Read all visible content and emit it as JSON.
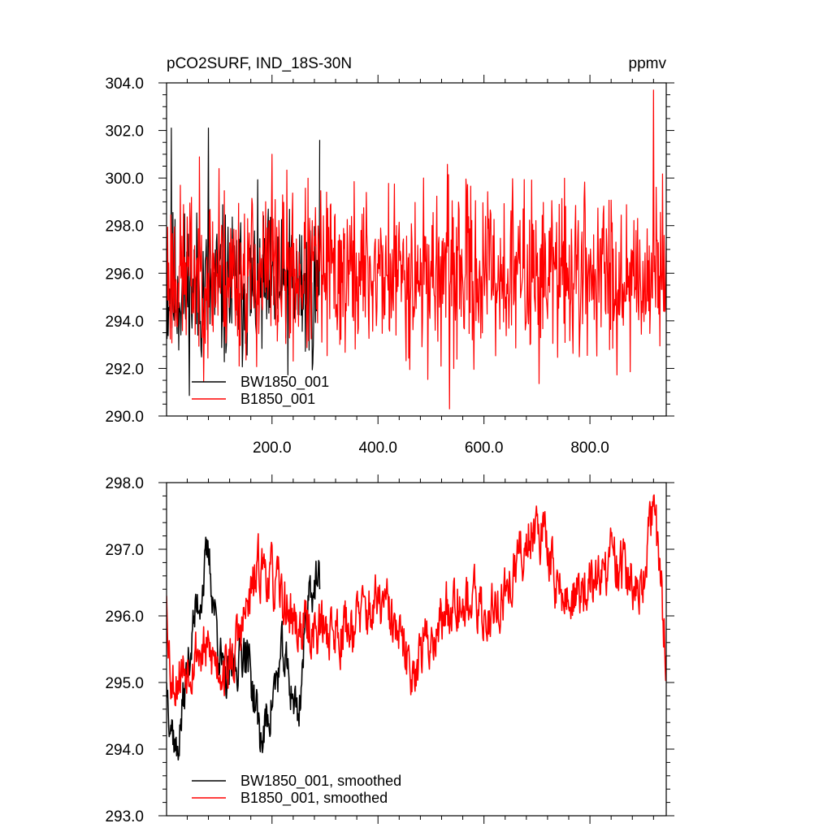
{
  "chart_data": [
    {
      "type": "line",
      "title": "pCO2SURF, IND_18S-30N",
      "units_label": "ppmv",
      "xlabel": "",
      "ylabel": "",
      "xlim": [
        1,
        944
      ],
      "ylim": [
        290.0,
        304.0
      ],
      "yticks": [
        290.0,
        292.0,
        294.0,
        296.0,
        298.0,
        300.0,
        302.0,
        304.0
      ],
      "ytick_labels": [
        "290.0",
        "292.0",
        "294.0",
        "296.0",
        "298.0",
        "300.0",
        "302.0",
        "304.0"
      ],
      "xticks": [
        200,
        400,
        600,
        800
      ],
      "xtick_labels": [
        "200.0",
        "400.0",
        "600.0",
        "800.0"
      ],
      "legend_position": "bottom-left",
      "grid": false,
      "series": [
        {
          "name": "BW1850_001",
          "color": "#000000",
          "n": 290,
          "mean": 295.3,
          "amp": 2.4,
          "start": 1,
          "seed": 11,
          "x": [
            1,
            10,
            40,
            80,
            130,
            180,
            220,
            260,
            290
          ],
          "y": [
            294.5,
            302.1,
            295.0,
            302.1,
            296.0,
            296.0,
            295.5,
            296.0,
            301.6
          ]
        },
        {
          "name": "B1850_001",
          "color": "#ff0000",
          "n": 944,
          "mean": 296.0,
          "amp": 2.6,
          "start": 1,
          "seed": 23,
          "x": [
            1,
            100,
            200,
            300,
            400,
            500,
            535,
            600,
            700,
            800,
            900,
            920,
            944
          ],
          "y": [
            295.5,
            300.4,
            301.0,
            296.0,
            296.0,
            296.5,
            290.3,
            296.0,
            296.5,
            296.0,
            296.5,
            303.7,
            297.5
          ]
        }
      ]
    },
    {
      "type": "line",
      "title": "",
      "xlabel": "",
      "ylabel": "",
      "xlim": [
        1,
        944
      ],
      "ylim": [
        293.0,
        298.0
      ],
      "yticks": [
        293.0,
        294.0,
        295.0,
        296.0,
        297.0,
        298.0
      ],
      "ytick_labels": [
        "293.0",
        "294.0",
        "295.0",
        "296.0",
        "297.0",
        "298.0"
      ],
      "legend_position": "bottom-left",
      "grid": false,
      "series": [
        {
          "name": "BW1850_001, smoothed",
          "color": "#000000",
          "n": 290,
          "start": 1,
          "seed": 37,
          "x": [
            1,
            20,
            50,
            80,
            110,
            150,
            180,
            220,
            250,
            270,
            290
          ],
          "y": [
            295.0,
            293.9,
            295.8,
            296.9,
            294.9,
            295.6,
            294.1,
            295.4,
            294.5,
            296.5,
            296.4
          ],
          "noise": 0.32
        },
        {
          "name": "B1850_001, smoothed",
          "color": "#ff0000",
          "n": 944,
          "start": 1,
          "seed": 53,
          "x": [
            1,
            10,
            60,
            120,
            180,
            250,
            330,
            410,
            460,
            510,
            550,
            600,
            640,
            700,
            750,
            800,
            850,
            900,
            920,
            944
          ],
          "y": [
            296.3,
            295.0,
            295.5,
            295.2,
            296.8,
            295.8,
            295.8,
            296.2,
            295.2,
            295.8,
            296.4,
            296.0,
            296.3,
            297.5,
            296.2,
            296.4,
            296.9,
            296.2,
            297.8,
            295.4
          ],
          "noise": 0.36
        }
      ]
    }
  ]
}
